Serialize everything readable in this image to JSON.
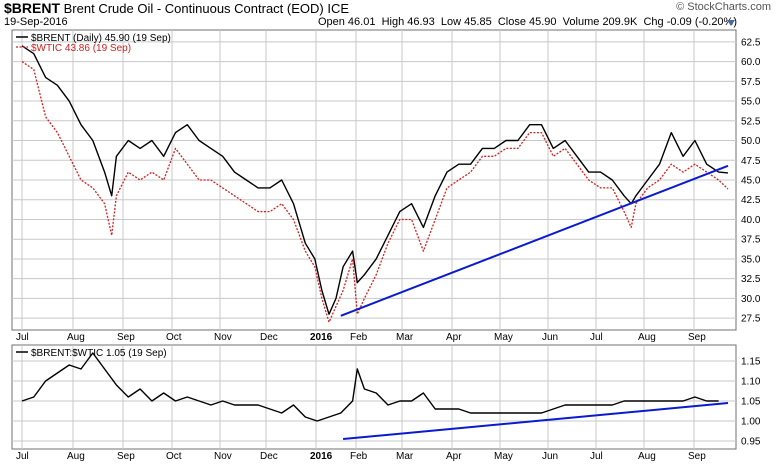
{
  "header": {
    "symbol": "$BRENT",
    "name": "Brent Crude Oil - Continuous Contract (EOD)",
    "exchange": "ICE",
    "date": "19-Sep-2016",
    "source": "© StockCharts.com",
    "open_label": "Open",
    "open": "46.01",
    "high_label": "High",
    "high": "46.93",
    "low_label": "Low",
    "low": "45.85",
    "close_label": "Close",
    "close": "45.90",
    "volume_label": "Volume",
    "volume": "209.9K",
    "chg_label": "Chg",
    "chg": "-0.09 (-0.20%)"
  },
  "colors": {
    "brent": "#000000",
    "wtic": "#d42020",
    "trend": "#0a1ad0",
    "grid": "#c8c8c8",
    "panel_border": "#707070"
  },
  "chart_data": [
    {
      "type": "line",
      "title": "$BRENT (Daily) 45.90 (19 Sep)",
      "legend": [
        "$BRENT (Daily) 45.90 (19 Sep)",
        "$WTIC 43.86 (19 Sep)"
      ],
      "x_labels": [
        "Jul",
        "Aug",
        "Sep",
        "Oct",
        "Nov",
        "Dec",
        "2016",
        "Feb",
        "Mar",
        "Apr",
        "May",
        "Jun",
        "Jul",
        "Aug",
        "Sep"
      ],
      "ylim": [
        26,
        64
      ],
      "yticks": [
        "27.5",
        "30.0",
        "32.5",
        "35.0",
        "37.5",
        "40.0",
        "42.5",
        "45.0",
        "47.5",
        "50.0",
        "52.5",
        "55.0",
        "57.5",
        "60.0",
        "62.5"
      ],
      "x_range": [
        0,
        14.95
      ],
      "series": [
        {
          "name": "$BRENT",
          "x": [
            0,
            0.25,
            0.5,
            0.75,
            1,
            1.25,
            1.5,
            1.75,
            1.9,
            2,
            2.25,
            2.5,
            2.75,
            3,
            3.25,
            3.5,
            3.75,
            4,
            4.25,
            4.5,
            4.75,
            5,
            5.25,
            5.5,
            5.75,
            6,
            6.2,
            6.35,
            6.5,
            6.65,
            6.8,
            7,
            7.1,
            7.25,
            7.5,
            7.75,
            8,
            8.25,
            8.5,
            8.75,
            9,
            9.25,
            9.5,
            9.75,
            10,
            10.25,
            10.5,
            10.75,
            11,
            11.25,
            11.5,
            11.75,
            12,
            12.25,
            12.5,
            12.75,
            12.9,
            13,
            13.25,
            13.5,
            13.75,
            14,
            14.25,
            14.5,
            14.75,
            14.95
          ],
          "values": [
            62,
            61,
            58,
            57,
            55,
            52,
            50,
            46,
            43,
            48,
            50,
            49,
            50,
            48,
            51,
            52,
            50,
            49,
            48,
            46,
            45,
            44,
            44,
            45,
            42,
            37,
            35,
            31,
            28,
            30,
            34,
            36,
            32,
            33,
            35,
            38,
            41,
            42,
            39,
            43,
            46,
            47,
            47,
            49,
            49,
            50,
            50,
            52,
            52,
            49,
            50,
            48,
            46,
            46,
            45,
            43,
            42,
            43,
            45,
            47,
            51,
            48,
            50,
            47,
            46,
            45.9
          ]
        },
        {
          "name": "$WTIC",
          "x": [
            0,
            0.25,
            0.5,
            0.75,
            1,
            1.25,
            1.5,
            1.75,
            1.9,
            2,
            2.25,
            2.5,
            2.75,
            3,
            3.25,
            3.5,
            3.75,
            4,
            4.25,
            4.5,
            4.75,
            5,
            5.25,
            5.5,
            5.75,
            6,
            6.2,
            6.35,
            6.5,
            6.65,
            6.8,
            7,
            7.1,
            7.25,
            7.5,
            7.75,
            8,
            8.25,
            8.5,
            8.75,
            9,
            9.25,
            9.5,
            9.75,
            10,
            10.25,
            10.5,
            10.75,
            11,
            11.25,
            11.5,
            11.75,
            12,
            12.25,
            12.5,
            12.75,
            12.9,
            13,
            13.25,
            13.5,
            13.75,
            14,
            14.25,
            14.5,
            14.75,
            14.95
          ],
          "values": [
            60,
            59,
            53,
            51,
            48,
            45,
            44,
            42,
            38,
            43,
            46,
            45,
            46,
            45,
            49,
            47,
            45,
            45,
            44,
            43,
            42,
            41,
            41,
            42,
            40,
            36,
            34,
            30,
            27,
            29,
            31,
            35,
            28,
            30,
            33,
            37,
            40,
            40,
            36,
            40,
            44,
            45,
            46,
            48,
            48,
            49,
            49,
            51,
            51,
            48,
            49,
            47,
            45,
            44,
            44,
            41,
            39,
            42,
            44,
            45,
            47,
            46,
            47,
            46,
            45,
            43.86
          ]
        },
        {
          "name": "trendline",
          "x": [
            6.75,
            14.95
          ],
          "values": [
            27.8,
            46.8
          ]
        }
      ]
    },
    {
      "type": "line",
      "title": "$BRENT:$WTIC 1.05 (19 Sep)",
      "x_labels": [
        "Jul",
        "Aug",
        "Sep",
        "Oct",
        "Nov",
        "Dec",
        "2016",
        "Feb",
        "Mar",
        "Apr",
        "May",
        "Jun",
        "Jul",
        "Aug",
        "Sep"
      ],
      "ylim": [
        0.93,
        1.19
      ],
      "yticks": [
        "0.95",
        "1.00",
        "1.05",
        "1.10",
        "1.15"
      ],
      "x_range": [
        0,
        14.95
      ],
      "series": [
        {
          "name": "$BRENT:$WTIC",
          "x": [
            0,
            0.25,
            0.5,
            0.75,
            1,
            1.25,
            1.5,
            1.75,
            2,
            2.25,
            2.5,
            2.75,
            3,
            3.25,
            3.5,
            3.75,
            4,
            4.25,
            4.5,
            4.75,
            5,
            5.25,
            5.5,
            5.75,
            6,
            6.25,
            6.5,
            6.75,
            7,
            7.1,
            7.25,
            7.5,
            7.75,
            8,
            8.25,
            8.5,
            8.75,
            9,
            9.25,
            9.5,
            9.75,
            10,
            10.25,
            10.5,
            10.75,
            11,
            11.25,
            11.5,
            11.75,
            12,
            12.25,
            12.5,
            12.75,
            13,
            13.25,
            13.5,
            13.75,
            14,
            14.25,
            14.5,
            14.75
          ],
          "values": [
            1.05,
            1.06,
            1.1,
            1.12,
            1.14,
            1.13,
            1.17,
            1.13,
            1.09,
            1.06,
            1.08,
            1.05,
            1.07,
            1.05,
            1.06,
            1.05,
            1.04,
            1.05,
            1.04,
            1.04,
            1.04,
            1.03,
            1.02,
            1.04,
            1.01,
            1.0,
            1.01,
            1.02,
            1.05,
            1.13,
            1.08,
            1.07,
            1.04,
            1.05,
            1.05,
            1.07,
            1.03,
            1.03,
            1.03,
            1.02,
            1.02,
            1.02,
            1.02,
            1.02,
            1.02,
            1.02,
            1.03,
            1.04,
            1.04,
            1.04,
            1.04,
            1.04,
            1.05,
            1.05,
            1.05,
            1.05,
            1.05,
            1.05,
            1.06,
            1.05,
            1.05
          ]
        },
        {
          "name": "trendline",
          "x": [
            6.8,
            14.95
          ],
          "values": [
            0.955,
            1.045
          ]
        }
      ]
    }
  ]
}
